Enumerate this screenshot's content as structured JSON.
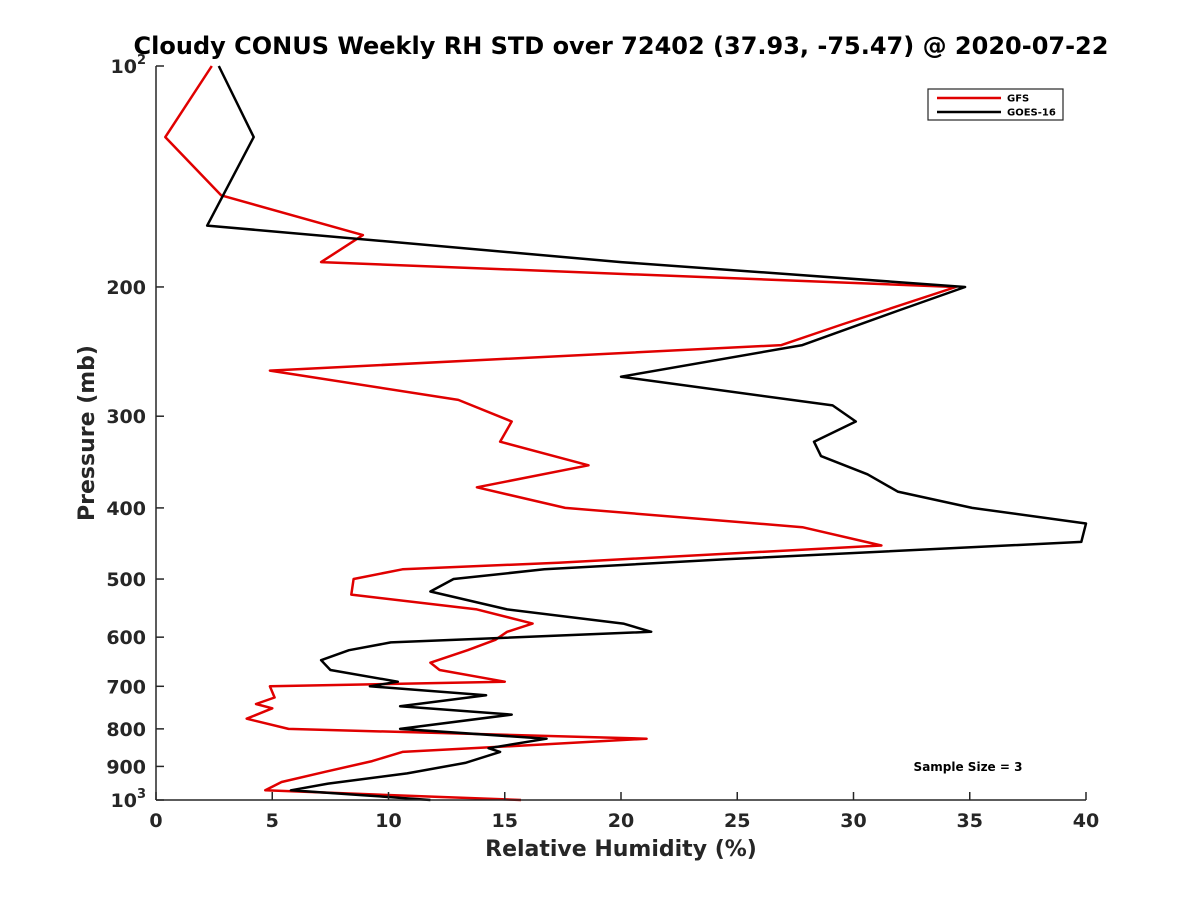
{
  "chart_data": {
    "type": "line",
    "title": "Cloudy CONUS Weekly RH STD over 72402 (37.93, -75.47) @ 2020-07-22",
    "xlabel": "Relative Humidity (%)",
    "ylabel": "Pressure (mb)",
    "xlim": [
      0,
      40
    ],
    "ylim": [
      100,
      1000
    ],
    "y_scale": "log",
    "y_reversed": true,
    "x_ticks": [
      0,
      5,
      10,
      15,
      20,
      25,
      30,
      35,
      40
    ],
    "y_ticks": [
      {
        "value": 100,
        "base": "10",
        "exp": "2"
      },
      {
        "value": 200,
        "text": "200"
      },
      {
        "value": 300,
        "text": "300"
      },
      {
        "value": 400,
        "text": "400"
      },
      {
        "value": 500,
        "text": "500"
      },
      {
        "value": 600,
        "text": "600"
      },
      {
        "value": 700,
        "text": "700"
      },
      {
        "value": 800,
        "text": "800"
      },
      {
        "value": 900,
        "text": "900"
      },
      {
        "value": 1000,
        "base": "10",
        "exp": "3"
      }
    ],
    "grid": false,
    "legend_position": "top-right",
    "annotation": "Sample Size = 3",
    "series": [
      {
        "name": "GFS",
        "color": "#e00000",
        "points": [
          [
            2.4,
            100
          ],
          [
            0.4,
            125
          ],
          [
            2.8,
            150
          ],
          [
            8.9,
            170
          ],
          [
            7.1,
            185
          ],
          [
            34.4,
            200
          ],
          [
            29.5,
            225
          ],
          [
            26.9,
            240
          ],
          [
            4.9,
            260
          ],
          [
            13,
            285
          ],
          [
            15.3,
            305
          ],
          [
            14.8,
            325
          ],
          [
            18.6,
            350
          ],
          [
            13.8,
            375
          ],
          [
            17.6,
            400
          ],
          [
            27.8,
            425
          ],
          [
            31.2,
            450
          ],
          [
            17.3,
            475
          ],
          [
            10.6,
            485
          ],
          [
            8.5,
            500
          ],
          [
            8.4,
            525
          ],
          [
            13.8,
            550
          ],
          [
            16.2,
            575
          ],
          [
            15.1,
            590
          ],
          [
            14.6,
            605
          ],
          [
            13.4,
            625
          ],
          [
            11.8,
            650
          ],
          [
            12.2,
            665
          ],
          [
            15,
            690
          ],
          [
            4.9,
            700
          ],
          [
            5.1,
            725
          ],
          [
            4.3,
            740
          ],
          [
            5,
            750
          ],
          [
            3.9,
            775
          ],
          [
            5.7,
            800
          ],
          [
            21.1,
            825
          ],
          [
            16.7,
            840
          ],
          [
            10.6,
            860
          ],
          [
            9.3,
            885
          ],
          [
            7.3,
            915
          ],
          [
            5.4,
            945
          ],
          [
            4.7,
            970
          ],
          [
            15.7,
            1000
          ]
        ]
      },
      {
        "name": "GOES-16",
        "color": "#000000",
        "points": [
          [
            2.7,
            100
          ],
          [
            4.2,
            125
          ],
          [
            2.2,
            165
          ],
          [
            20,
            185
          ],
          [
            34.8,
            200
          ],
          [
            32,
            215
          ],
          [
            27.8,
            240
          ],
          [
            20,
            265
          ],
          [
            29.1,
            290
          ],
          [
            30.1,
            305
          ],
          [
            28.3,
            325
          ],
          [
            28.6,
            340
          ],
          [
            30.6,
            360
          ],
          [
            31.9,
            380
          ],
          [
            35.1,
            400
          ],
          [
            40,
            420
          ],
          [
            39.8,
            445
          ],
          [
            24.5,
            470
          ],
          [
            16.7,
            485
          ],
          [
            12.8,
            500
          ],
          [
            11.8,
            520
          ],
          [
            15.1,
            550
          ],
          [
            20.1,
            575
          ],
          [
            21.3,
            590
          ],
          [
            10.1,
            610
          ],
          [
            8.3,
            625
          ],
          [
            7.1,
            645
          ],
          [
            7.5,
            665
          ],
          [
            10.4,
            690
          ],
          [
            9.2,
            700
          ],
          [
            14.2,
            720
          ],
          [
            10.5,
            745
          ],
          [
            15.3,
            765
          ],
          [
            10.5,
            800
          ],
          [
            16.8,
            825
          ],
          [
            14.3,
            850
          ],
          [
            14.8,
            860
          ],
          [
            13.3,
            890
          ],
          [
            10.8,
            920
          ],
          [
            7.4,
            950
          ],
          [
            5.8,
            970
          ],
          [
            8.9,
            985
          ],
          [
            11.8,
            1000
          ]
        ]
      }
    ]
  }
}
